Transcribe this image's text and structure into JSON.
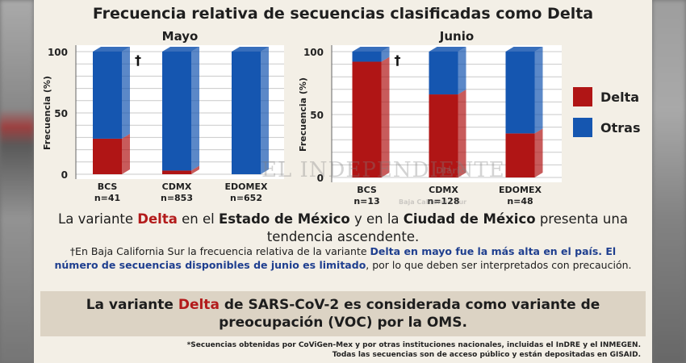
{
  "title": "Frecuencia relativa de secuencias clasificadas como Delta",
  "chart_data": [
    {
      "type": "bar",
      "stacked": true,
      "title": "Mayo",
      "ylabel": "Frecuencia (%)",
      "ylim": [
        0,
        100
      ],
      "yticks": [
        "0",
        "50",
        "100"
      ],
      "categories": [
        "BCS",
        "CDMX",
        "EDOMEX"
      ],
      "category_labels": [
        "n=41",
        "n=853",
        "n=652"
      ],
      "series": [
        {
          "name": "Delta",
          "color": "#b01515",
          "values": [
            29,
            3,
            0
          ]
        },
        {
          "name": "Otras",
          "color": "#1556b0",
          "values": [
            71,
            97,
            100
          ]
        }
      ],
      "annotations": [
        {
          "category": "BCS",
          "text": "†"
        }
      ]
    },
    {
      "type": "bar",
      "stacked": true,
      "title": "Junio",
      "ylabel": "Frecuencia (%)",
      "ylim": [
        0,
        100
      ],
      "yticks": [
        "0",
        "50",
        "100"
      ],
      "categories": [
        "BCS",
        "CDMX",
        "EDOMEX"
      ],
      "category_labels": [
        "n=13",
        "n=128",
        "n=48"
      ],
      "series": [
        {
          "name": "Delta",
          "color": "#b01515",
          "values": [
            92,
            66,
            35
          ]
        },
        {
          "name": "Otras",
          "color": "#1556b0",
          "values": [
            8,
            34,
            65
          ]
        }
      ],
      "annotations": [
        {
          "category": "BCS",
          "text": "†"
        }
      ]
    }
  ],
  "legend": [
    {
      "label": "Delta",
      "color": "#b01515"
    },
    {
      "label": "Otras",
      "color": "#1556b0"
    }
  ],
  "text1": {
    "a": "La variante ",
    "b": "Delta",
    "c": " en el ",
    "d": "Estado de México",
    "e": " y en la ",
    "f": "Ciudad de México",
    "g": " presenta una tendencia ascendente."
  },
  "note": {
    "a": "†En Baja California Sur la frecuencia relativa de la variante ",
    "b": "Delta",
    "c": " en mayo fue la más alta en el país. El número de secuencias disponibles de junio es limitado",
    "d": ", por lo que deben ser interpretados con precaución."
  },
  "voc": {
    "a": "La variante ",
    "b": "Delta",
    "c": " de SARS-CoV-2 es considerada como variante de preocupación (VOC) por la OMS."
  },
  "footnote": {
    "line1": "*Secuencias obtenidas por CoViGen-Mex y por otras instituciones nacionales, incluidas el InDRE y el INMEGEN.",
    "line2": "Todas las secuencias son de acceso público y están depositadas en GISAID."
  },
  "watermark": {
    "main": "EL INDEPENDIENTE",
    "sub": "Diario",
    "sub2": "Baja California Sur"
  }
}
